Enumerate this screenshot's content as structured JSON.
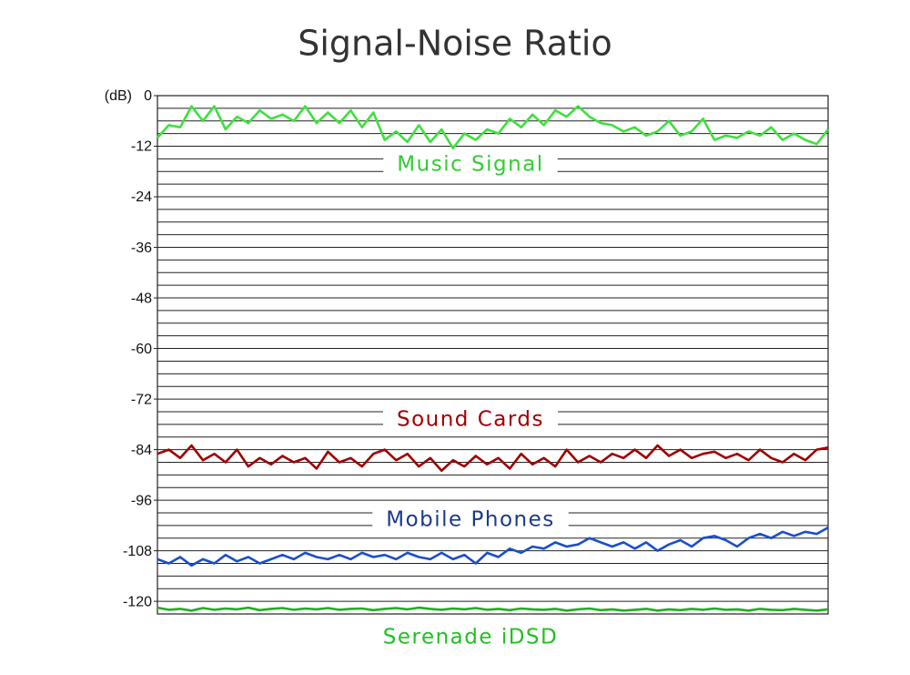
{
  "chart_data": {
    "type": "line",
    "title": "Signal-Noise Ratio",
    "ylabel": "(dB)",
    "ylim": [
      -123,
      0
    ],
    "yticks": [
      0,
      -12,
      -24,
      -36,
      -48,
      -60,
      -72,
      -84,
      -96,
      -108,
      -120
    ],
    "minor_yticks": [
      0,
      -3,
      -6,
      -9,
      -12,
      -15,
      -18,
      -21,
      -24,
      -27,
      -30,
      -33,
      -36,
      -39,
      -42,
      -45,
      -48,
      -51,
      -54,
      -57,
      -60,
      -63,
      -66,
      -69,
      -72,
      -75,
      -78,
      -81,
      -84,
      -87,
      -90,
      -93,
      -96,
      -99,
      -102,
      -105,
      -108,
      -111,
      -114,
      -117,
      -120,
      -123
    ],
    "grid": true,
    "series": [
      {
        "name": "Music Signal",
        "color": "#3fe03f",
        "label_color": "#33cc33",
        "values": [
          -10,
          -7,
          -7.5,
          -2.5,
          -6,
          -2.5,
          -8,
          -5,
          -6.5,
          -3.5,
          -5.5,
          -4.5,
          -6,
          -2.5,
          -6.5,
          -4,
          -6.5,
          -3.5,
          -7.5,
          -4,
          -10.5,
          -8.5,
          -11,
          -7,
          -11,
          -8,
          -12.5,
          -9,
          -10.5,
          -8,
          -9,
          -5.5,
          -7.5,
          -4.5,
          -7,
          -3.5,
          -5,
          -2.5,
          -5,
          -6.5,
          -7,
          -8.5,
          -7.5,
          -9.5,
          -8.5,
          -6,
          -9.5,
          -8.5,
          -5.5,
          -10.5,
          -9.5,
          -10,
          -8.5,
          -9.5,
          -7.5,
          -10.5,
          -9,
          -10.5,
          -11.5,
          -8
        ]
      },
      {
        "name": "Sound Cards",
        "color": "#a00000",
        "label_color": "#a00000",
        "values": [
          -85,
          -84,
          -86,
          -83,
          -86.5,
          -85,
          -87,
          -84,
          -88,
          -86,
          -87.5,
          -85.5,
          -87,
          -86,
          -88.5,
          -84.5,
          -87,
          -86,
          -88,
          -85,
          -84,
          -86.5,
          -85,
          -88,
          -86,
          -89,
          -86.5,
          -88,
          -85.5,
          -87.5,
          -86,
          -88.5,
          -85,
          -87.5,
          -86,
          -88,
          -84,
          -87,
          -85.5,
          -87,
          -85,
          -86,
          -84,
          -86,
          -83,
          -85.5,
          -84,
          -86,
          -85,
          -84.5,
          -86,
          -85,
          -86.5,
          -84,
          -86,
          -87,
          -85,
          -86.5,
          -84,
          -83.5
        ]
      },
      {
        "name": "Mobile Phones",
        "color": "#1a4fcc",
        "label_color": "#1b3a8a",
        "values": [
          -110,
          -111,
          -109.5,
          -111.5,
          -110,
          -111,
          -109,
          -110.5,
          -109.5,
          -111,
          -110,
          -109,
          -110,
          -108.5,
          -109.5,
          -110,
          -109,
          -110,
          -108.5,
          -109.5,
          -109,
          -110,
          -108.5,
          -109.5,
          -110,
          -108.5,
          -110,
          -109,
          -111,
          -108.5,
          -109.5,
          -107.5,
          -108.5,
          -107,
          -107.5,
          -106,
          -107,
          -106.5,
          -105,
          -106,
          -107,
          -106,
          -107.5,
          -106,
          -108,
          -106.5,
          -105.5,
          -107,
          -105,
          -104.5,
          -105.5,
          -107,
          -105,
          -104,
          -105,
          -103.5,
          -104.5,
          -103.5,
          -104,
          -102.5
        ]
      },
      {
        "name": "Serenade iDSD",
        "color": "#1faf1f",
        "label_color": "#22c022",
        "values": [
          -121.5,
          -122,
          -121.8,
          -122.2,
          -121.6,
          -122,
          -121.7,
          -121.9,
          -121.5,
          -122.1,
          -121.8,
          -121.6,
          -122,
          -121.7,
          -121.9,
          -121.6,
          -122,
          -121.8,
          -121.7,
          -122.1,
          -121.8,
          -121.6,
          -121.9,
          -121.5,
          -121.8,
          -122,
          -121.7,
          -121.9,
          -121.6,
          -122,
          -121.8,
          -122.1,
          -121.7,
          -121.9,
          -122,
          -121.8,
          -122.2,
          -121.9,
          -121.7,
          -122.1,
          -121.9,
          -122.2,
          -122,
          -121.8,
          -122.2,
          -121.9,
          -122.1,
          -121.8,
          -122,
          -121.7,
          -122,
          -121.9,
          -122.2,
          -121.8,
          -122,
          -122.1,
          -121.8,
          -122,
          -122.2,
          -121.9
        ]
      }
    ]
  }
}
